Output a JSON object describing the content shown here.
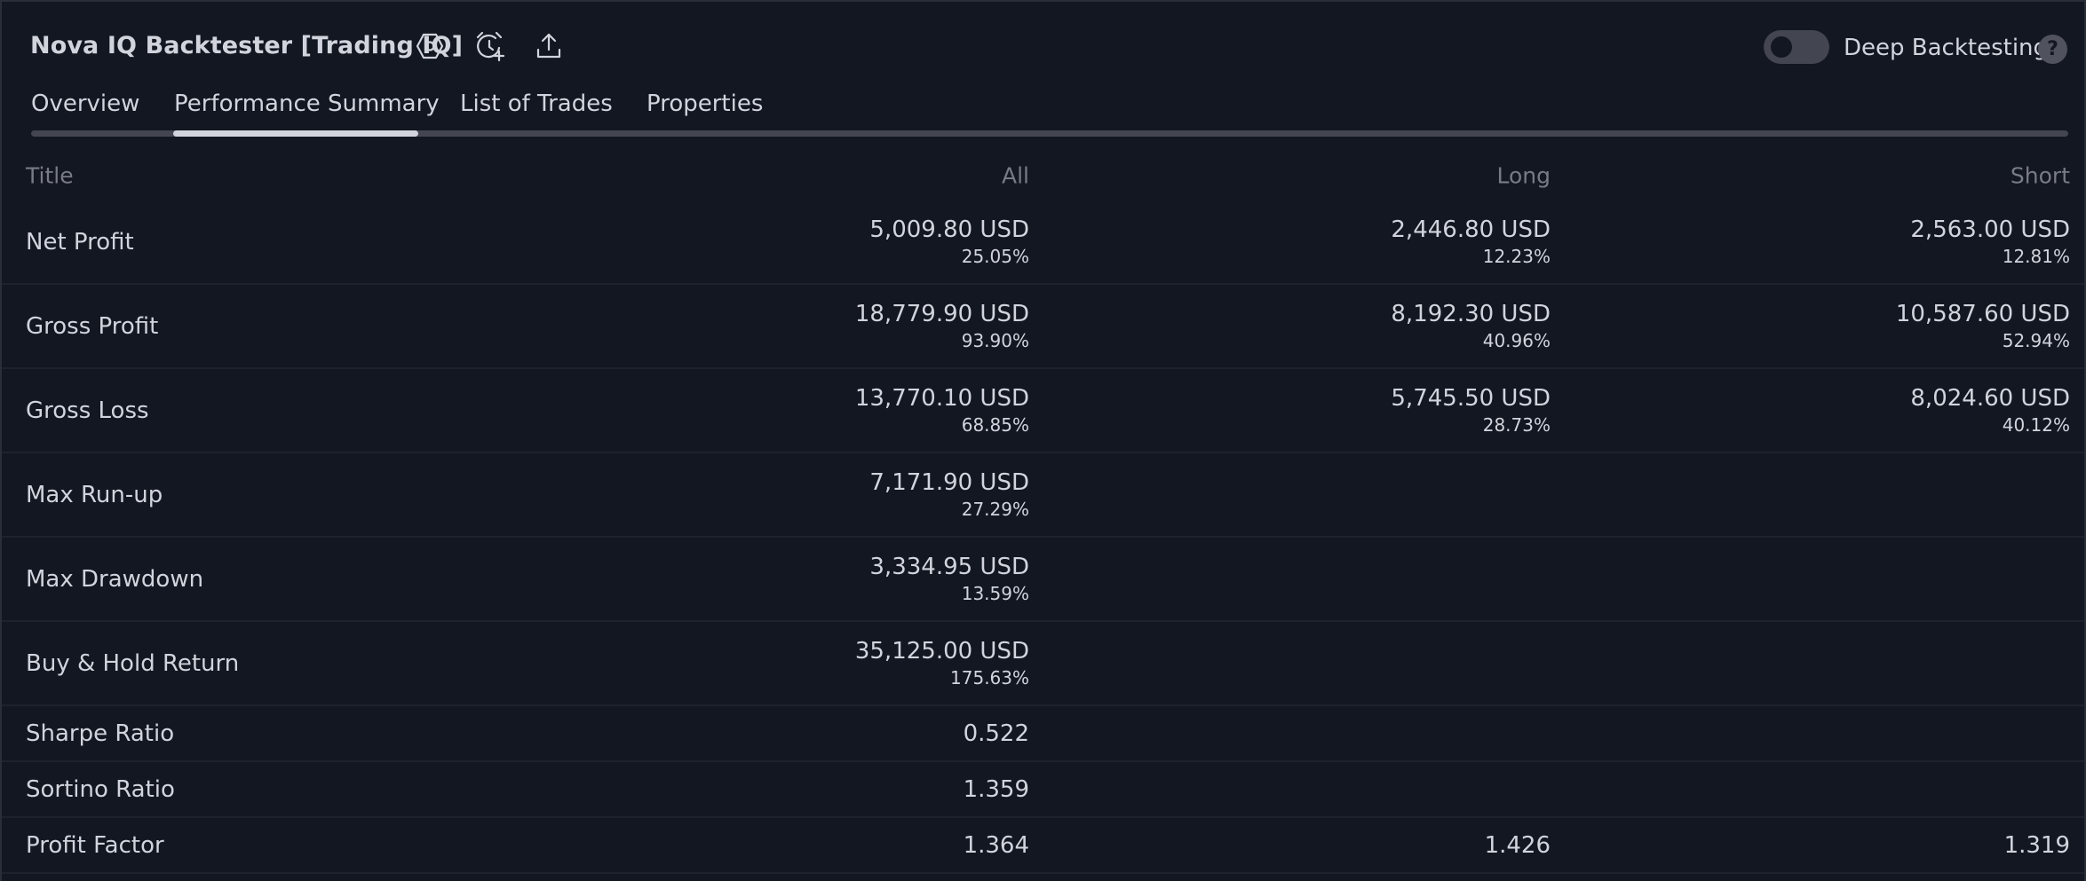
{
  "header": {
    "title": "Nova IQ Backtester [Trading IQ]",
    "icons": [
      "settings-hexagon-icon",
      "add-alert-icon",
      "export-icon"
    ],
    "deep_backtesting_label": "Deep Backtesting",
    "deep_backtesting_enabled": false,
    "help_glyph": "?"
  },
  "tabs": [
    {
      "label": "Overview",
      "active": false
    },
    {
      "label": "Performance Summary",
      "active": true
    },
    {
      "label": "List of Trades",
      "active": false
    },
    {
      "label": "Properties",
      "active": false
    }
  ],
  "table": {
    "columns": {
      "title": "Title",
      "all": "All",
      "long": "Long",
      "short": "Short"
    },
    "rows": [
      {
        "title": "Net Profit",
        "all": {
          "value": "5,009.80 USD",
          "pct": "25.05%"
        },
        "long": {
          "value": "2,446.80 USD",
          "pct": "12.23%"
        },
        "short": {
          "value": "2,563.00 USD",
          "pct": "12.81%"
        }
      },
      {
        "title": "Gross Profit",
        "all": {
          "value": "18,779.90 USD",
          "pct": "93.90%"
        },
        "long": {
          "value": "8,192.30 USD",
          "pct": "40.96%"
        },
        "short": {
          "value": "10,587.60 USD",
          "pct": "52.94%"
        }
      },
      {
        "title": "Gross Loss",
        "all": {
          "value": "13,770.10 USD",
          "pct": "68.85%"
        },
        "long": {
          "value": "5,745.50 USD",
          "pct": "28.73%"
        },
        "short": {
          "value": "8,024.60 USD",
          "pct": "40.12%"
        }
      },
      {
        "title": "Max Run-up",
        "all": {
          "value": "7,171.90 USD",
          "pct": "27.29%"
        }
      },
      {
        "title": "Max Drawdown",
        "all": {
          "value": "3,334.95 USD",
          "pct": "13.59%"
        }
      },
      {
        "title": "Buy & Hold Return",
        "all": {
          "value": "35,125.00 USD",
          "pct": "175.63%"
        }
      },
      {
        "title": "Sharpe Ratio",
        "all": {
          "value": "0.522"
        }
      },
      {
        "title": "Sortino Ratio",
        "all": {
          "value": "1.359"
        }
      },
      {
        "title": "Profit Factor",
        "all": {
          "value": "1.364"
        },
        "long": {
          "value": "1.426"
        },
        "short": {
          "value": "1.319"
        }
      }
    ]
  },
  "colors": {
    "background": "#131722",
    "text": "#d1d4dc",
    "muted_text": "#787b86",
    "track": "#434651",
    "divider": "#1e222d"
  }
}
